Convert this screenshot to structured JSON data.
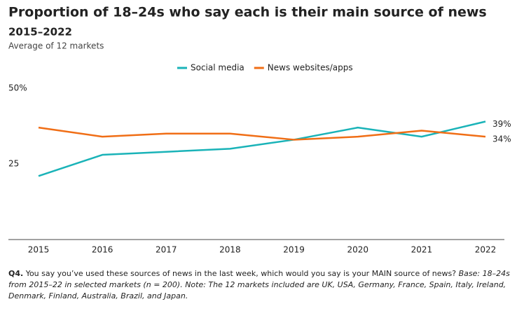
{
  "chart_data": {
    "type": "line",
    "title": "Proportion of 18–24s who say each is their main source of news",
    "subtitle": "2015–2022",
    "caption": "Average of 12 markets",
    "categories": [
      "2015",
      "2016",
      "2017",
      "2018",
      "2019",
      "2020",
      "2021",
      "2022"
    ],
    "series": [
      {
        "name": "Social media",
        "color": "#1ab3b8",
        "values": [
          21,
          28,
          29,
          30,
          33,
          37,
          34,
          39
        ],
        "value_labels": [
          null,
          null,
          null,
          null,
          null,
          null,
          null,
          "39%"
        ]
      },
      {
        "name": "News websites/apps",
        "color": "#f06e16",
        "values": [
          37,
          34,
          35,
          35,
          33,
          34,
          36,
          34
        ],
        "value_labels": [
          null,
          null,
          null,
          null,
          null,
          null,
          null,
          "34%"
        ]
      }
    ],
    "ylim": [
      0,
      50
    ],
    "yticks": [
      25,
      {
        "value": 50,
        "label": "50%"
      }
    ],
    "grid": false,
    "legend": "top",
    "footnote": {
      "label": "Q4.",
      "question": "You say you’ve used these sources of news in the last week, which would you say is your MAIN source of news?",
      "note": "Base: 18–24s from 2015–22 in selected markets (n = 200). Note: The 12 markets included are UK, USA, Germany, France, Spain, Italy, Ireland, Denmark, Finland, Australia, Brazil, and Japan."
    }
  }
}
